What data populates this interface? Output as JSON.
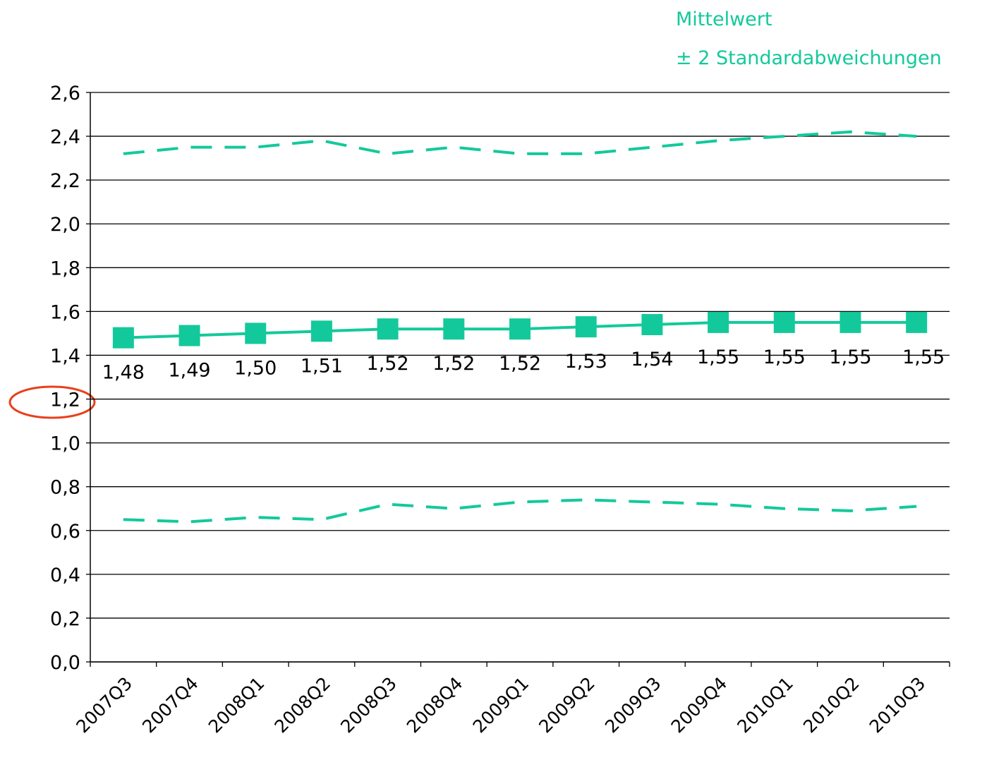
{
  "chart_data": {
    "type": "line",
    "categories": [
      "2007Q3",
      "2007Q4",
      "2008Q1",
      "2008Q2",
      "2008Q3",
      "2008Q4",
      "2009Q1",
      "2009Q2",
      "2009Q3",
      "2009Q4",
      "2010Q1",
      "2010Q2",
      "2010Q3"
    ],
    "series": [
      {
        "name": "Mittelwert",
        "color": "#13c99b",
        "marker": "square",
        "values": [
          1.48,
          1.49,
          1.5,
          1.51,
          1.52,
          1.52,
          1.52,
          1.53,
          1.54,
          1.55,
          1.55,
          1.55,
          1.55
        ],
        "value_labels": [
          "1,48",
          "1,49",
          "1,50",
          "1,51",
          "1,52",
          "1,52",
          "1,52",
          "1,53",
          "1,54",
          "1,55",
          "1,55",
          "1,55",
          "1,55"
        ]
      },
      {
        "name": "± 2 Standardabweichungen",
        "color": "#13c99b",
        "dashed": true,
        "values": [
          2.32,
          2.35,
          2.35,
          2.38,
          2.32,
          2.35,
          2.32,
          2.32,
          2.35,
          2.38,
          2.4,
          2.42,
          2.4
        ],
        "lower": [
          0.65,
          0.64,
          0.66,
          0.65,
          0.72,
          0.7,
          0.73,
          0.74,
          0.73,
          0.72,
          0.7,
          0.69,
          0.71
        ]
      }
    ],
    "ylim": [
      0,
      2.6
    ],
    "yticks": [
      {
        "value": 0,
        "label": "0,0"
      },
      {
        "value": 0.2,
        "label": "0,2"
      },
      {
        "value": 0.4,
        "label": "0,4"
      },
      {
        "value": 0.6,
        "label": "0,6"
      },
      {
        "value": 0.8,
        "label": "0,8"
      },
      {
        "value": 1.0,
        "label": "1,0"
      },
      {
        "value": 1.2,
        "label": "1,2"
      },
      {
        "value": 1.4,
        "label": "1,4"
      },
      {
        "value": 1.6,
        "label": "1,6"
      },
      {
        "value": 1.8,
        "label": "1,8"
      },
      {
        "value": 2.0,
        "label": "2,0"
      },
      {
        "value": 2.2,
        "label": "2,2"
      },
      {
        "value": 2.4,
        "label": "2,4"
      },
      {
        "value": 2.6,
        "label": "2,6"
      }
    ],
    "grid": true
  }
}
